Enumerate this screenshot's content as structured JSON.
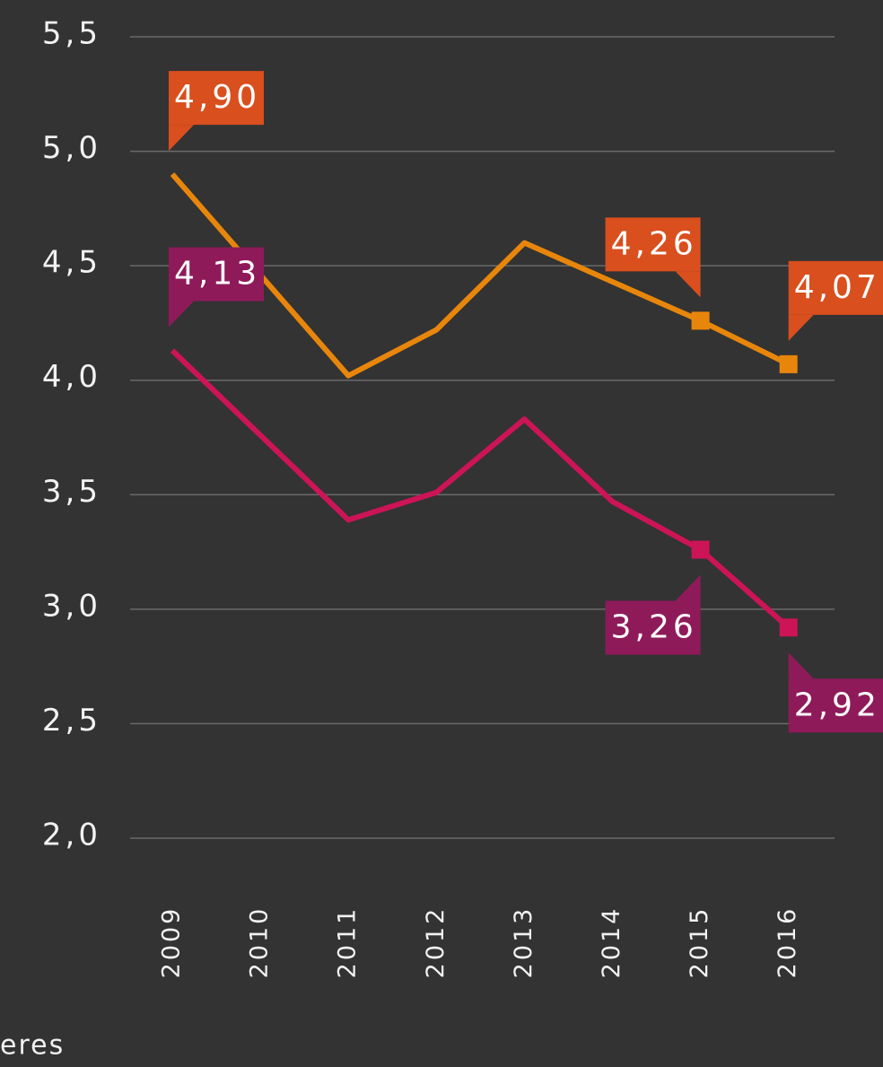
{
  "chart_data": {
    "type": "line",
    "categories": [
      "2009",
      "2010",
      "2011",
      "2012",
      "2013",
      "2014",
      "2015",
      "2016"
    ],
    "series": [
      {
        "color": "#e8860c",
        "label_color": "#d94f1e",
        "marked": [
          6,
          7
        ],
        "values": [
          4.9,
          4.46,
          4.02,
          4.22,
          4.6,
          4.43,
          4.26,
          4.07
        ],
        "value_labels": [
          "4,90",
          null,
          null,
          null,
          null,
          null,
          "4,26",
          "4,07"
        ]
      },
      {
        "color": "#cc1457",
        "label_color": "#8f1a5a",
        "marked": [
          6,
          7
        ],
        "values": [
          4.13,
          3.76,
          3.39,
          3.51,
          3.83,
          3.47,
          3.26,
          2.92
        ],
        "value_labels": [
          "4,13",
          null,
          null,
          null,
          null,
          null,
          "3,26",
          "2,92"
        ]
      }
    ],
    "ylim": [
      2.0,
      5.5
    ],
    "yticks": [
      {
        "value": 2.0,
        "label": "2,0"
      },
      {
        "value": 2.5,
        "label": "2,5"
      },
      {
        "value": 3.0,
        "label": "3,0"
      },
      {
        "value": 3.5,
        "label": "3,5"
      },
      {
        "value": 4.0,
        "label": "4,0"
      },
      {
        "value": 4.5,
        "label": "4,5"
      },
      {
        "value": 5.0,
        "label": "5,0"
      },
      {
        "value": 5.5,
        "label": "5,5"
      }
    ],
    "grid": true,
    "source": "eres"
  }
}
